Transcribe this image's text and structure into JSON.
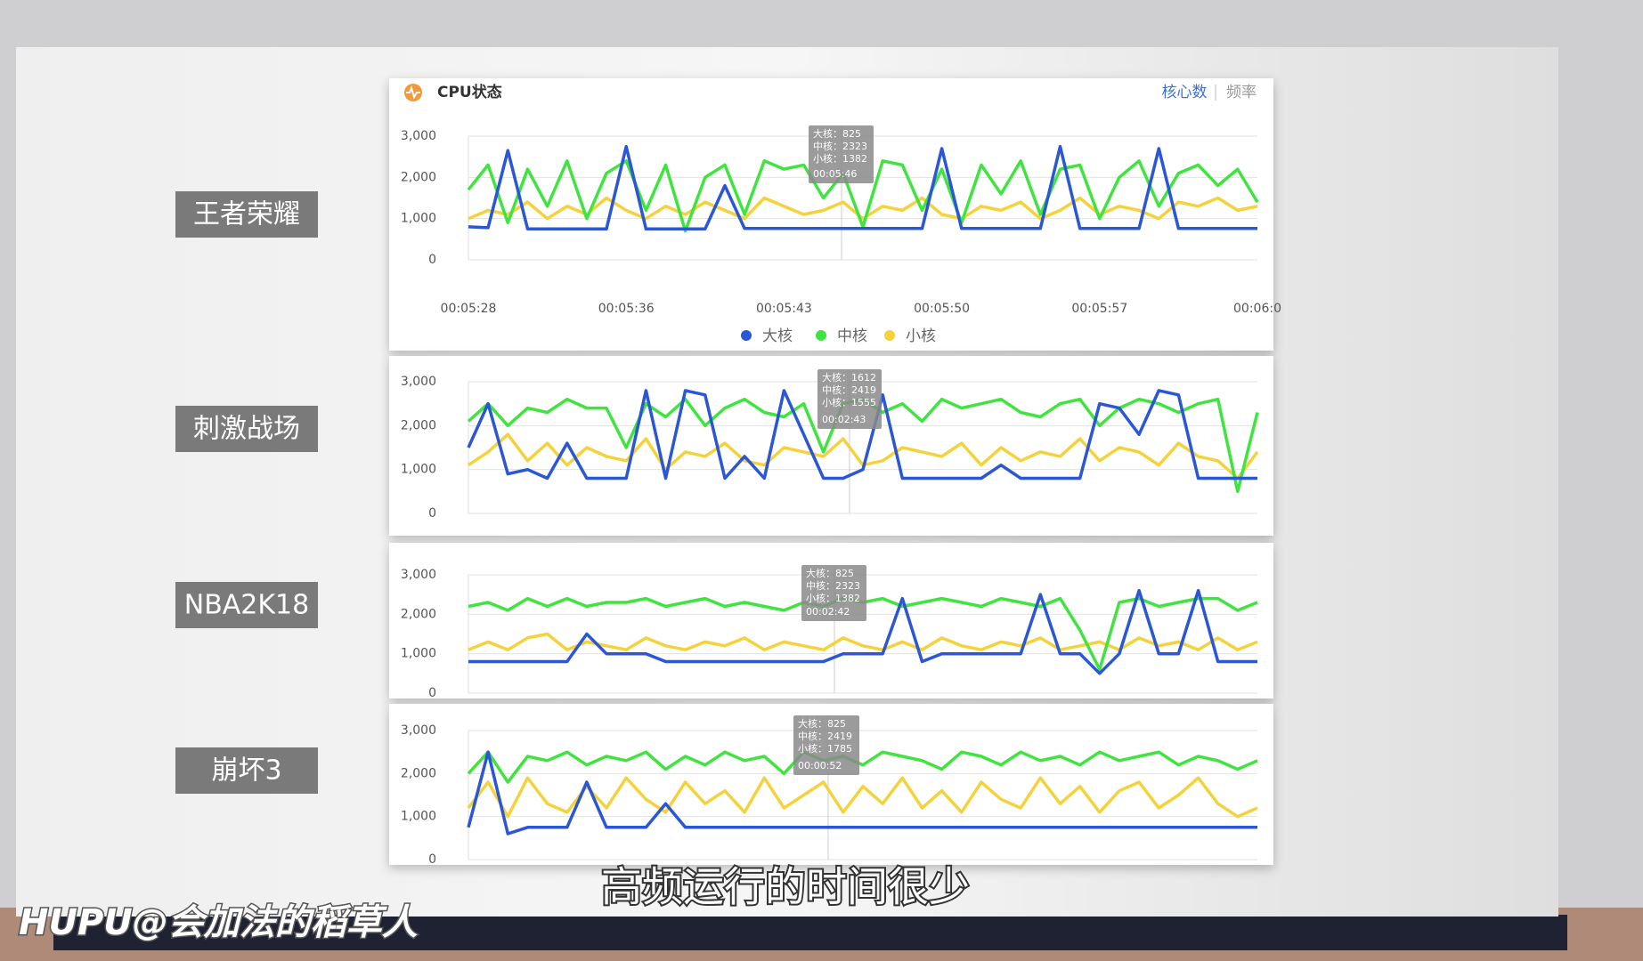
{
  "chart_data": [
    {
      "type": "line",
      "label": "王者荣耀",
      "title": "CPU状态",
      "tabs": [
        "核心数",
        "频率"
      ],
      "legend": "bottom",
      "categories": [
        "00:05:28",
        null,
        null,
        null,
        null,
        null,
        null,
        null,
        "00:05:36",
        null,
        null,
        null,
        null,
        null,
        null,
        null,
        "00:05:43",
        null,
        null,
        null,
        null,
        null,
        null,
        null,
        "00:05:50",
        null,
        null,
        null,
        null,
        null,
        null,
        null,
        "00:05:57",
        null,
        null,
        null,
        null,
        null,
        null,
        null,
        "00:06:0"
      ],
      "ylim": [
        0,
        3000
      ],
      "yticks": [
        0,
        {
          "value": 1000,
          "label": "1,000"
        },
        {
          "value": 2000,
          "label": "2,000"
        },
        {
          "value": 3000,
          "label": "3,000"
        }
      ],
      "grid": true,
      "tooltip": {
        "lines": [
          "大核：825",
          "中核：2323",
          "小核：1382"
        ],
        "time": "00:05:46"
      },
      "series": [
        {
          "name": "大核",
          "color": "#2b56d6",
          "values": [
            800,
            780,
            2650,
            750,
            750,
            750,
            750,
            750,
            2750,
            750,
            750,
            750,
            750,
            1800,
            760,
            760,
            760,
            760,
            760,
            760,
            760,
            760,
            760,
            760,
            2700,
            760,
            760,
            760,
            760,
            760,
            2750,
            760,
            760,
            760,
            760,
            2700,
            760,
            760,
            760,
            760,
            760
          ]
        },
        {
          "name": "中核",
          "color": "#3fe43f",
          "values": [
            1700,
            2300,
            900,
            2200,
            1300,
            2400,
            1000,
            2100,
            2400,
            1200,
            2300,
            700,
            2000,
            2300,
            1100,
            2400,
            2200,
            2300,
            1500,
            2100,
            800,
            2400,
            2300,
            1200,
            2200,
            900,
            2300,
            1600,
            2400,
            1100,
            2200,
            2300,
            1000,
            2000,
            2400,
            1300,
            2100,
            2300,
            1800,
            2200,
            1400
          ]
        },
        {
          "name": "小核",
          "color": "#f4d23c",
          "values": [
            1000,
            1200,
            1100,
            1400,
            1000,
            1300,
            1100,
            1500,
            1200,
            1000,
            1300,
            1100,
            1400,
            1200,
            1000,
            1500,
            1300,
            1100,
            1200,
            1400,
            1000,
            1300,
            1200,
            1500,
            1100,
            1000,
            1300,
            1200,
            1400,
            1000,
            1200,
            1500,
            1100,
            1300,
            1200,
            1000,
            1400,
            1300,
            1500,
            1200,
            1300
          ]
        }
      ]
    },
    {
      "type": "line",
      "label": "刺激战场",
      "ylim": [
        0,
        3000
      ],
      "yticks": [
        0,
        {
          "value": 1000,
          "label": "1,000"
        },
        {
          "value": 2000,
          "label": "2,000"
        },
        {
          "value": 3000,
          "label": "3,000"
        }
      ],
      "grid": true,
      "tooltip": {
        "lines": [
          "大核：1612",
          "中核：2419",
          "小核：1555"
        ],
        "time": "00:02:43"
      },
      "series": [
        {
          "name": "大核",
          "color": "#2b56d6",
          "values": [
            1500,
            2500,
            900,
            1000,
            800,
            1600,
            800,
            800,
            800,
            2800,
            800,
            2800,
            2700,
            800,
            1300,
            800,
            2800,
            1800,
            800,
            800,
            1000,
            2700,
            800,
            800,
            800,
            800,
            800,
            1100,
            800,
            800,
            800,
            800,
            2500,
            2400,
            1800,
            2800,
            2700,
            800,
            800,
            800,
            800
          ]
        },
        {
          "name": "中核",
          "color": "#3fe43f",
          "values": [
            2100,
            2500,
            2000,
            2400,
            2300,
            2600,
            2400,
            2400,
            1500,
            2500,
            2200,
            2600,
            2000,
            2400,
            2600,
            2300,
            2200,
            2500,
            1400,
            2500,
            2600,
            2300,
            2500,
            2100,
            2600,
            2400,
            2500,
            2600,
            2300,
            2200,
            2500,
            2600,
            2000,
            2400,
            2600,
            2500,
            2300,
            2500,
            2600,
            500,
            2300
          ]
        },
        {
          "name": "小核",
          "color": "#f4d23c",
          "values": [
            1100,
            1400,
            1800,
            1200,
            1600,
            1100,
            1500,
            1300,
            1200,
            1700,
            1000,
            1400,
            1300,
            1600,
            1200,
            1100,
            1500,
            1400,
            1300,
            1700,
            1100,
            1200,
            1500,
            1400,
            1300,
            1600,
            1100,
            1500,
            1200,
            1400,
            1300,
            1700,
            1200,
            1500,
            1400,
            1100,
            1600,
            1300,
            1200,
            800,
            1400
          ]
        }
      ]
    },
    {
      "type": "line",
      "label": "NBA2K18",
      "ylim": [
        0,
        3000
      ],
      "yticks": [
        0,
        {
          "value": 1000,
          "label": "1,000"
        },
        {
          "value": 2000,
          "label": "2,000"
        },
        {
          "value": 3000,
          "label": "3,000"
        }
      ],
      "grid": true,
      "tooltip": {
        "lines": [
          "大核：825",
          "中核：2323",
          "小核：1382"
        ],
        "time": "00:02:42"
      },
      "series": [
        {
          "name": "大核",
          "color": "#2b56d6",
          "values": [
            800,
            800,
            800,
            800,
            800,
            800,
            1500,
            1000,
            1000,
            1000,
            800,
            800,
            800,
            800,
            800,
            800,
            800,
            800,
            800,
            1000,
            1000,
            1000,
            2400,
            800,
            1000,
            1000,
            1000,
            1000,
            1000,
            2500,
            1000,
            1000,
            500,
            1000,
            2600,
            1000,
            1000,
            2600,
            800,
            800,
            800
          ]
        },
        {
          "name": "中核",
          "color": "#3fe43f",
          "values": [
            2200,
            2300,
            2100,
            2400,
            2200,
            2400,
            2200,
            2300,
            2300,
            2400,
            2200,
            2300,
            2400,
            2200,
            2300,
            2200,
            2100,
            2300,
            2200,
            2400,
            2300,
            2400,
            2200,
            2300,
            2400,
            2300,
            2200,
            2400,
            2300,
            2200,
            2400,
            1600,
            600,
            2300,
            2400,
            2200,
            2300,
            2400,
            2400,
            2100,
            2300
          ]
        },
        {
          "name": "小核",
          "color": "#f4d23c",
          "values": [
            1100,
            1300,
            1100,
            1400,
            1500,
            1100,
            1300,
            1200,
            1100,
            1400,
            1200,
            1100,
            1300,
            1200,
            1400,
            1100,
            1300,
            1200,
            1100,
            1400,
            1200,
            1100,
            1300,
            1100,
            1400,
            1200,
            1100,
            1300,
            1200,
            1400,
            1100,
            1200,
            1300,
            1100,
            1400,
            1200,
            1300,
            1100,
            1400,
            1100,
            1300
          ]
        }
      ]
    },
    {
      "type": "line",
      "label": "崩坏3",
      "ylim": [
        0,
        3000
      ],
      "yticks": [
        0,
        {
          "value": 1000,
          "label": "1,000"
        },
        {
          "value": 2000,
          "label": "2,000"
        },
        {
          "value": 3000,
          "label": "3,000"
        }
      ],
      "grid": true,
      "tooltip": {
        "lines": [
          "大核：825",
          "中核：2419",
          "小核：1785"
        ],
        "time": "00:00:52"
      },
      "series": [
        {
          "name": "大核",
          "color": "#2b56d6",
          "values": [
            750,
            2500,
            600,
            750,
            750,
            750,
            1800,
            750,
            750,
            750,
            1300,
            750,
            750,
            750,
            750,
            750,
            750,
            750,
            750,
            750,
            750,
            750,
            750,
            750,
            750,
            750,
            750,
            750,
            750,
            750,
            750,
            750,
            750,
            750,
            750,
            750,
            750,
            750,
            750,
            750,
            750
          ]
        },
        {
          "name": "中核",
          "color": "#3fe43f",
          "values": [
            2000,
            2500,
            1800,
            2400,
            2300,
            2500,
            2200,
            2400,
            2300,
            2500,
            2100,
            2400,
            2200,
            2500,
            2300,
            2400,
            2000,
            2500,
            2300,
            2400,
            2200,
            2500,
            2400,
            2300,
            2100,
            2500,
            2400,
            2200,
            2500,
            2300,
            2400,
            2200,
            2500,
            2300,
            2400,
            2500,
            2200,
            2400,
            2300,
            2100,
            2300
          ]
        },
        {
          "name": "小核",
          "color": "#f4d23c",
          "values": [
            1200,
            1800,
            1000,
            1900,
            1300,
            1100,
            1700,
            1200,
            1900,
            1400,
            1100,
            1800,
            1300,
            1600,
            1100,
            1900,
            1200,
            1500,
            1800,
            1100,
            1700,
            1300,
            1900,
            1200,
            1600,
            1100,
            1800,
            1400,
            1200,
            1900,
            1300,
            1700,
            1100,
            1600,
            1800,
            1200,
            1500,
            1900,
            1300,
            1000,
            1200
          ]
        }
      ]
    }
  ],
  "subtitle": "高频运行的时间很少",
  "watermark": "HUPU@会加法的稻草人"
}
